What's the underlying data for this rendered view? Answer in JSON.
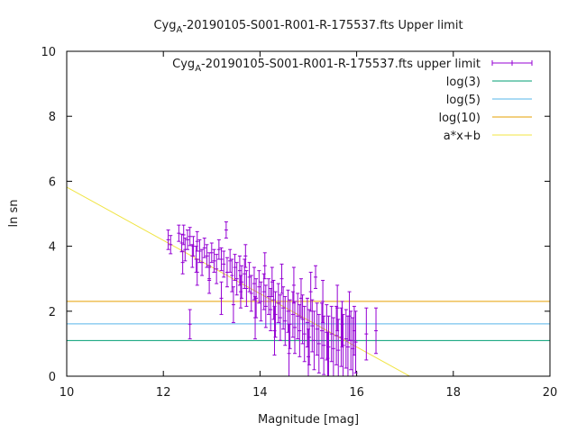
{
  "chart_data": {
    "type": "scatter",
    "title": {
      "prefix": "Cyg",
      "sub": "A",
      "suffix": "-20190105-S001-R001-R-175537.fts Upper limit"
    },
    "xlabel": "Magnitude [mag]",
    "ylabel": "ln sn",
    "xlim": [
      10,
      20
    ],
    "ylim": [
      0,
      10
    ],
    "xticks": [
      "10",
      "12",
      "14",
      "16",
      "18",
      "20"
    ],
    "yticks": [
      "0",
      "2",
      "4",
      "6",
      "8",
      "10"
    ],
    "grid": false,
    "legend_position": "top-right",
    "series": [
      {
        "name": {
          "prefix": "Cyg",
          "sub": "A",
          "suffix": "-20190105-S001-R001-R-175537.fts upper limit"
        },
        "kind": "errorbar",
        "color": "#9400d3"
      },
      {
        "name": "log(3)",
        "kind": "hline",
        "value": 1.0986,
        "color": "#009e73"
      },
      {
        "name": "log(5)",
        "kind": "hline",
        "value": 1.6094,
        "color": "#56b4e9"
      },
      {
        "name": "log(10)",
        "kind": "hline",
        "value": 2.3026,
        "color": "#e69f00"
      },
      {
        "name": "a*x+b",
        "kind": "fit",
        "slope": -0.82,
        "intercept": 14.02,
        "color": "#f0e442"
      }
    ],
    "points": [
      [
        12.1,
        4.2,
        0.3
      ],
      [
        12.15,
        4.05,
        0.28
      ],
      [
        12.32,
        4.4,
        0.25
      ],
      [
        12.38,
        4.1,
        0.27
      ],
      [
        12.42,
        4.35,
        0.3
      ],
      [
        12.45,
        3.9,
        0.35
      ],
      [
        12.5,
        4.2,
        0.3
      ],
      [
        12.55,
        4.3,
        0.28
      ],
      [
        12.6,
        3.7,
        0.35
      ],
      [
        12.62,
        4.0,
        0.3
      ],
      [
        12.68,
        3.6,
        0.4
      ],
      [
        12.7,
        4.15,
        0.3
      ],
      [
        12.75,
        3.85,
        0.35
      ],
      [
        12.8,
        3.5,
        0.4
      ],
      [
        12.85,
        3.95,
        0.3
      ],
      [
        12.9,
        3.7,
        0.35
      ],
      [
        12.95,
        3.4,
        0.4
      ],
      [
        13.0,
        3.8,
        0.3
      ],
      [
        13.05,
        3.55,
        0.35
      ],
      [
        13.1,
        3.3,
        0.45
      ],
      [
        13.15,
        3.9,
        0.3
      ],
      [
        13.2,
        3.6,
        0.35
      ],
      [
        13.25,
        3.45,
        0.4
      ],
      [
        13.3,
        4.5,
        0.25
      ],
      [
        13.32,
        3.2,
        0.45
      ],
      [
        13.38,
        3.55,
        0.35
      ],
      [
        13.42,
        3.1,
        0.5
      ],
      [
        13.48,
        3.35,
        0.4
      ],
      [
        13.52,
        3.0,
        0.5
      ],
      [
        13.58,
        3.25,
        0.45
      ],
      [
        13.62,
        2.9,
        0.5
      ],
      [
        13.68,
        3.15,
        0.45
      ],
      [
        13.72,
        2.7,
        0.55
      ],
      [
        13.78,
        3.05,
        0.45
      ],
      [
        13.82,
        2.55,
        0.55
      ],
      [
        13.88,
        2.85,
        0.5
      ],
      [
        13.92,
        2.4,
        0.6
      ],
      [
        13.98,
        2.75,
        0.5
      ],
      [
        14.02,
        2.3,
        0.6
      ],
      [
        14.08,
        2.6,
        0.55
      ],
      [
        14.12,
        2.15,
        0.65
      ],
      [
        14.18,
        2.45,
        0.55
      ],
      [
        14.22,
        2.05,
        0.65
      ],
      [
        14.28,
        2.35,
        0.6
      ],
      [
        14.32,
        1.9,
        0.7
      ],
      [
        14.38,
        2.25,
        0.6
      ],
      [
        14.42,
        1.8,
        0.7
      ],
      [
        14.48,
        2.1,
        0.65
      ],
      [
        14.52,
        1.7,
        0.75
      ],
      [
        14.58,
        2.0,
        0.65
      ],
      [
        14.62,
        1.6,
        0.75
      ],
      [
        14.68,
        1.9,
        0.7
      ],
      [
        14.72,
        1.5,
        0.8
      ],
      [
        14.78,
        1.85,
        0.7
      ],
      [
        14.82,
        1.4,
        0.8
      ],
      [
        14.88,
        1.75,
        0.75
      ],
      [
        14.92,
        1.3,
        0.85
      ],
      [
        14.98,
        1.65,
        0.75
      ],
      [
        15.02,
        1.2,
        0.85
      ],
      [
        15.08,
        1.55,
        0.8
      ],
      [
        15.12,
        1.1,
        0.9
      ],
      [
        15.18,
        1.45,
        0.8
      ],
      [
        15.22,
        1.0,
        0.9
      ],
      [
        15.28,
        1.4,
        0.85
      ],
      [
        15.32,
        0.95,
        0.9
      ],
      [
        15.38,
        1.35,
        0.85
      ],
      [
        15.42,
        0.9,
        0.95
      ],
      [
        15.48,
        1.3,
        0.85
      ],
      [
        15.52,
        0.85,
        0.95
      ],
      [
        15.58,
        1.25,
        0.9
      ],
      [
        15.62,
        0.8,
        0.95
      ],
      [
        15.68,
        1.2,
        0.9
      ],
      [
        15.72,
        0.95,
        0.95
      ],
      [
        15.78,
        1.15,
        0.9
      ],
      [
        15.82,
        0.9,
        0.95
      ],
      [
        15.88,
        1.1,
        0.9
      ],
      [
        15.92,
        0.85,
        0.95
      ],
      [
        15.98,
        1.05,
        0.95
      ],
      [
        16.2,
        1.3,
        0.8
      ],
      [
        16.4,
        1.4,
        0.7
      ],
      [
        12.55,
        1.6,
        0.45
      ],
      [
        12.7,
        3.2,
        0.4
      ],
      [
        13.2,
        2.4,
        0.5
      ],
      [
        13.45,
        2.2,
        0.55
      ],
      [
        13.7,
        3.7,
        0.35
      ],
      [
        14.1,
        3.4,
        0.4
      ],
      [
        14.45,
        3.0,
        0.45
      ],
      [
        14.7,
        2.8,
        0.55
      ],
      [
        15.05,
        2.6,
        0.6
      ],
      [
        15.3,
        2.3,
        0.65
      ],
      [
        15.6,
        2.1,
        0.7
      ],
      [
        15.85,
        1.85,
        0.75
      ],
      [
        14.6,
        0.7,
        0.9
      ],
      [
        15.0,
        0.6,
        0.85
      ],
      [
        15.4,
        0.55,
        0.8
      ],
      [
        13.9,
        1.8,
        0.65
      ],
      [
        14.3,
        1.4,
        0.75
      ],
      [
        15.15,
        3.05,
        0.35
      ],
      [
        14.25,
        2.9,
        0.45
      ],
      [
        13.6,
        2.6,
        0.5
      ],
      [
        12.95,
        2.95,
        0.4
      ],
      [
        12.4,
        3.5,
        0.35
      ],
      [
        15.7,
        1.6,
        0.7
      ],
      [
        15.95,
        1.4,
        0.75
      ],
      [
        14.85,
        2.4,
        0.6
      ]
    ]
  }
}
